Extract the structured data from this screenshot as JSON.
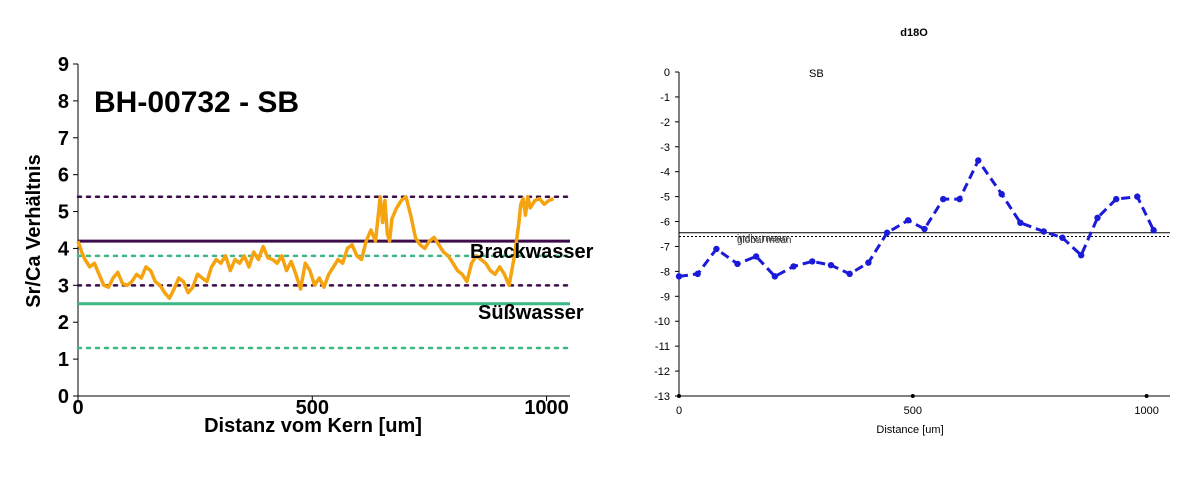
{
  "chart_data": [
    {
      "type": "line",
      "title": "BH-00732 - SB",
      "xlabel": "Distanz vom Kern [um]",
      "ylabel": "Sr/Ca Verhältnis",
      "xlim": [
        0,
        1050
      ],
      "ylim": [
        0,
        9
      ],
      "x_ticks": [
        "0",
        "500",
        "1000"
      ],
      "y_ticks": [
        "0",
        "1",
        "2",
        "3",
        "4",
        "5",
        "6",
        "7",
        "8",
        "9"
      ],
      "grid": false,
      "colors": {
        "series": "#f5a30f",
        "brack": "#3b0d4a",
        "suess": "#3cb884"
      },
      "series": [
        {
          "x": [
            0,
            8,
            15,
            25,
            35,
            45,
            55,
            65,
            75,
            85,
            95,
            105,
            115,
            125,
            135,
            145,
            155,
            165,
            175,
            185,
            195,
            205,
            215,
            225,
            235,
            245,
            255,
            265,
            275,
            285,
            295,
            305,
            315,
            325,
            335,
            345,
            355,
            365,
            375,
            385,
            395,
            405,
            415,
            425,
            435,
            445,
            455,
            465,
            475,
            485,
            495,
            505,
            515,
            525,
            535,
            545,
            555,
            565,
            575,
            585,
            595,
            605,
            615,
            625,
            635,
            645,
            650,
            655,
            660,
            665,
            670,
            680,
            690,
            700,
            710,
            720,
            730,
            740,
            750,
            760,
            770,
            780,
            790,
            800,
            810,
            820,
            830,
            840,
            850,
            860,
            870,
            880,
            890,
            900,
            910,
            920,
            930,
            940,
            945,
            950,
            955,
            960,
            965,
            975,
            985,
            995,
            1005,
            1015
          ],
          "y": [
            4.2,
            3.9,
            3.7,
            3.5,
            3.6,
            3.3,
            3.0,
            2.95,
            3.2,
            3.35,
            3.05,
            3.0,
            3.1,
            3.3,
            3.2,
            3.5,
            3.4,
            3.1,
            3.0,
            2.8,
            2.65,
            2.9,
            3.2,
            3.1,
            2.8,
            2.95,
            3.3,
            3.2,
            3.1,
            3.5,
            3.7,
            3.6,
            3.8,
            3.4,
            3.7,
            3.6,
            3.8,
            3.5,
            3.9,
            3.7,
            4.05,
            3.75,
            3.7,
            3.6,
            3.8,
            3.4,
            3.65,
            3.3,
            2.9,
            3.6,
            3.4,
            3.0,
            3.2,
            2.95,
            3.3,
            3.5,
            3.7,
            3.6,
            4.0,
            4.1,
            3.8,
            3.7,
            4.2,
            4.5,
            4.2,
            5.4,
            4.7,
            5.3,
            4.4,
            4.2,
            4.8,
            5.1,
            5.3,
            5.4,
            4.9,
            4.3,
            4.1,
            4.0,
            4.2,
            4.3,
            4.1,
            3.9,
            3.8,
            3.6,
            3.4,
            3.3,
            3.1,
            3.6,
            3.8,
            3.7,
            3.6,
            3.4,
            3.3,
            3.5,
            3.3,
            3.0,
            3.7,
            4.6,
            5.2,
            5.35,
            4.9,
            5.4,
            5.1,
            5.3,
            5.35,
            5.2,
            5.3,
            5.35
          ]
        }
      ],
      "reference_lines": [
        {
          "name": "Brackwasser",
          "y": 4.2,
          "style": "solid",
          "color": "#3b0d4a"
        },
        {
          "name": "",
          "y": 5.4,
          "style": "dotted",
          "color": "#3b0d4a"
        },
        {
          "name": "",
          "y": 3.0,
          "style": "dotted",
          "color": "#3b0d4a"
        },
        {
          "name": "Süßwasser",
          "y": 2.5,
          "style": "solid",
          "color": "#3cb884"
        },
        {
          "name": "",
          "y": 3.8,
          "style": "dotted",
          "color": "#3cb884"
        },
        {
          "name": "",
          "y": 1.3,
          "style": "dotted",
          "color": "#3cb884"
        }
      ]
    },
    {
      "type": "line",
      "title": "d18O",
      "subtitle": "SB",
      "xlabel": "Distance [um]",
      "ylabel": "",
      "xlim": [
        0,
        1050
      ],
      "ylim": [
        -13,
        0
      ],
      "x_ticks": [
        "0",
        "500",
        "1000"
      ],
      "y_ticks": [
        "0",
        "-1",
        "-2",
        "-3",
        "-4",
        "-5",
        "-6",
        "-7",
        "-8",
        "-9",
        "-10",
        "-11",
        "-12",
        "-13"
      ],
      "grid": false,
      "colors": {
        "series": "#1a1ad8",
        "mean": "#000000"
      },
      "series": [
        {
          "x": [
            0,
            40,
            80,
            125,
            165,
            205,
            245,
            285,
            325,
            365,
            405,
            445,
            490,
            525,
            565,
            600,
            640,
            690,
            730,
            780,
            820,
            860,
            895,
            935,
            980,
            1015
          ],
          "y": [
            -8.2,
            -8.1,
            -7.1,
            -7.7,
            -7.4,
            -8.2,
            -7.8,
            -7.6,
            -7.75,
            -8.1,
            -7.65,
            -6.45,
            -5.95,
            -6.3,
            -5.1,
            -5.1,
            -3.55,
            -4.9,
            -6.05,
            -6.4,
            -6.65,
            -7.35,
            -5.85,
            -5.1,
            -5.0,
            -6.35
          ]
        }
      ],
      "reference_lines": [
        {
          "name": "global mean",
          "y": -6.45,
          "style": "solid",
          "color": "#000000"
        },
        {
          "name": "indiv. mean",
          "y": -6.6,
          "style": "dotted",
          "color": "#000000"
        }
      ]
    }
  ]
}
